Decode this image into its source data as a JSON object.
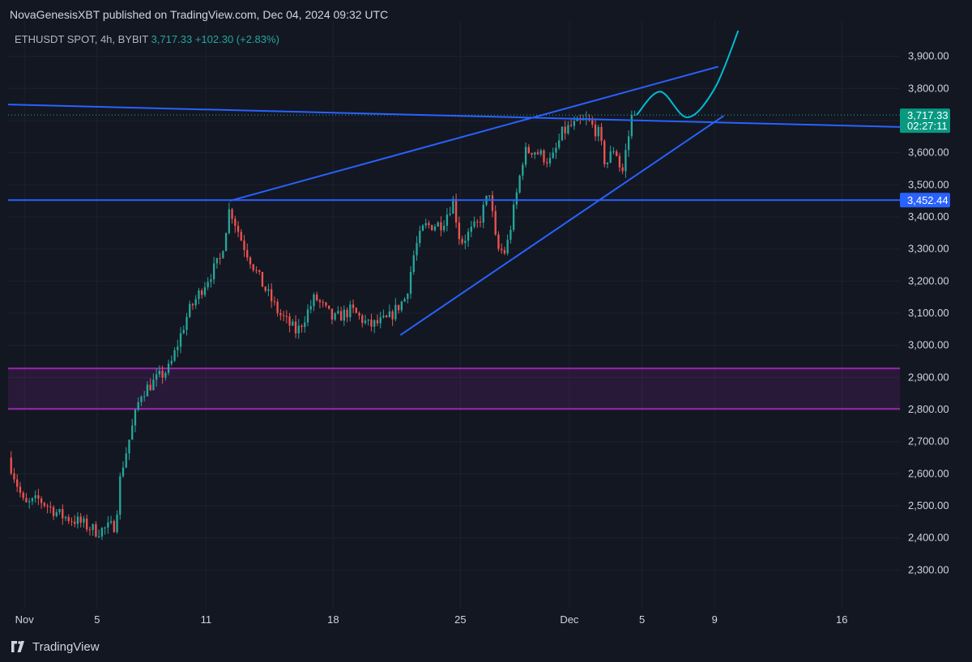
{
  "header": {
    "published": "NovaGenesisXBT published on TradingView.com, Dec 04, 2024 09:32 UTC"
  },
  "legend": {
    "symbol": "ETHUSDT SPOT, 4h, BYBIT",
    "last": "3,717.33",
    "change": "+102.30 (+2.83%)"
  },
  "footer": {
    "brand": "TradingView"
  },
  "price_axis": {
    "last_tag": "3,717.33",
    "countdown": "02:27:11",
    "level_tag": "3,452.44"
  },
  "colors": {
    "background": "#131722",
    "up": "#26a69a",
    "down": "#ef5350",
    "trendline": "#2962ff",
    "zone": "#9c27b0",
    "projection": "#00bcd4",
    "last_tag": "#089981",
    "level_tag": "#2962ff"
  },
  "chart_data": {
    "type": "candlestick",
    "timeframe": "4h",
    "x_ticks": [
      {
        "label": "Nov",
        "day": 0
      },
      {
        "label": "5",
        "day": 4
      },
      {
        "label": "11",
        "day": 10
      },
      {
        "label": "18",
        "day": 17
      },
      {
        "label": "25",
        "day": 24
      },
      {
        "label": "Dec",
        "day": 30
      },
      {
        "label": "5",
        "day": 34
      },
      {
        "label": "9",
        "day": 38
      },
      {
        "label": "16",
        "day": 45
      }
    ],
    "y_ticks": [
      "2,300.00",
      "2,400.00",
      "2,500.00",
      "2,600.00",
      "2,700.00",
      "2,800.00",
      "2,900.00",
      "3,000.00",
      "3,100.00",
      "3,200.00",
      "3,300.00",
      "3,400.00",
      "3,500.00",
      "3,600.00",
      "3,700.00",
      "3,800.00",
      "3,900.00"
    ],
    "y_tick_values": [
      2300,
      2400,
      2500,
      2600,
      2700,
      2800,
      2900,
      3000,
      3100,
      3200,
      3300,
      3400,
      3500,
      3600,
      3700,
      3800,
      3900
    ],
    "ylim": [
      2180,
      4010
    ],
    "x_range_days": [
      -0.9,
      48.2
    ],
    "last_price": 3717.33,
    "close_path": [
      {
        "day": -0.9,
        "price": 2650
      },
      {
        "day": 0.0,
        "price": 2500
      },
      {
        "day": 0.8,
        "price": 2520
      },
      {
        "day": 2.0,
        "price": 2470
      },
      {
        "day": 3.0,
        "price": 2450
      },
      {
        "day": 4.0,
        "price": 2420
      },
      {
        "day": 5.0,
        "price": 2440
      },
      {
        "day": 5.3,
        "price": 2600
      },
      {
        "day": 6.0,
        "price": 2760
      },
      {
        "day": 6.4,
        "price": 2850
      },
      {
        "day": 7.0,
        "price": 2880
      },
      {
        "day": 8.0,
        "price": 2930
      },
      {
        "day": 9.0,
        "price": 3100
      },
      {
        "day": 10.0,
        "price": 3200
      },
      {
        "day": 10.8,
        "price": 3270
      },
      {
        "day": 11.3,
        "price": 3430
      },
      {
        "day": 12.0,
        "price": 3320
      },
      {
        "day": 13.0,
        "price": 3200
      },
      {
        "day": 14.0,
        "price": 3100
      },
      {
        "day": 15.0,
        "price": 3040
      },
      {
        "day": 16.0,
        "price": 3150
      },
      {
        "day": 17.0,
        "price": 3080
      },
      {
        "day": 18.0,
        "price": 3110
      },
      {
        "day": 19.0,
        "price": 3060
      },
      {
        "day": 20.0,
        "price": 3080
      },
      {
        "day": 21.0,
        "price": 3150
      },
      {
        "day": 21.5,
        "price": 3300
      },
      {
        "day": 22.0,
        "price": 3370
      },
      {
        "day": 23.0,
        "price": 3380
      },
      {
        "day": 23.6,
        "price": 3450
      },
      {
        "day": 24.0,
        "price": 3320
      },
      {
        "day": 25.0,
        "price": 3380
      },
      {
        "day": 25.6,
        "price": 3480
      },
      {
        "day": 26.0,
        "price": 3300
      },
      {
        "day": 26.5,
        "price": 3290
      },
      {
        "day": 27.0,
        "price": 3440
      },
      {
        "day": 27.5,
        "price": 3600
      },
      {
        "day": 28.0,
        "price": 3610
      },
      {
        "day": 29.0,
        "price": 3570
      },
      {
        "day": 29.6,
        "price": 3660
      },
      {
        "day": 30.0,
        "price": 3680
      },
      {
        "day": 31.0,
        "price": 3700
      },
      {
        "day": 31.6,
        "price": 3660
      },
      {
        "day": 32.0,
        "price": 3560
      },
      {
        "day": 32.5,
        "price": 3620
      },
      {
        "day": 32.9,
        "price": 3530
      },
      {
        "day": 33.2,
        "price": 3640
      },
      {
        "day": 33.6,
        "price": 3717
      }
    ],
    "levels": [
      {
        "price": 3452.44,
        "label": "3,452.44"
      }
    ],
    "zones": [
      {
        "from": 2802,
        "to": 2928
      }
    ],
    "trendlines": [
      {
        "from": {
          "day": -0.9,
          "price": 3750
        },
        "to": {
          "day": 48.2,
          "price": 3680
        }
      },
      {
        "from": {
          "day": 11.3,
          "price": 3450
        },
        "to": {
          "day": 38.2,
          "price": 3868
        }
      },
      {
        "from": {
          "day": 20.7,
          "price": 3032
        },
        "to": {
          "day": 38.5,
          "price": 3715
        }
      }
    ],
    "projection": [
      {
        "day": 33.7,
        "price": 3717
      },
      {
        "day": 35.0,
        "price": 3790
      },
      {
        "day": 36.5,
        "price": 3710
      },
      {
        "day": 38.0,
        "price": 3800
      },
      {
        "day": 39.3,
        "price": 3980
      }
    ]
  }
}
